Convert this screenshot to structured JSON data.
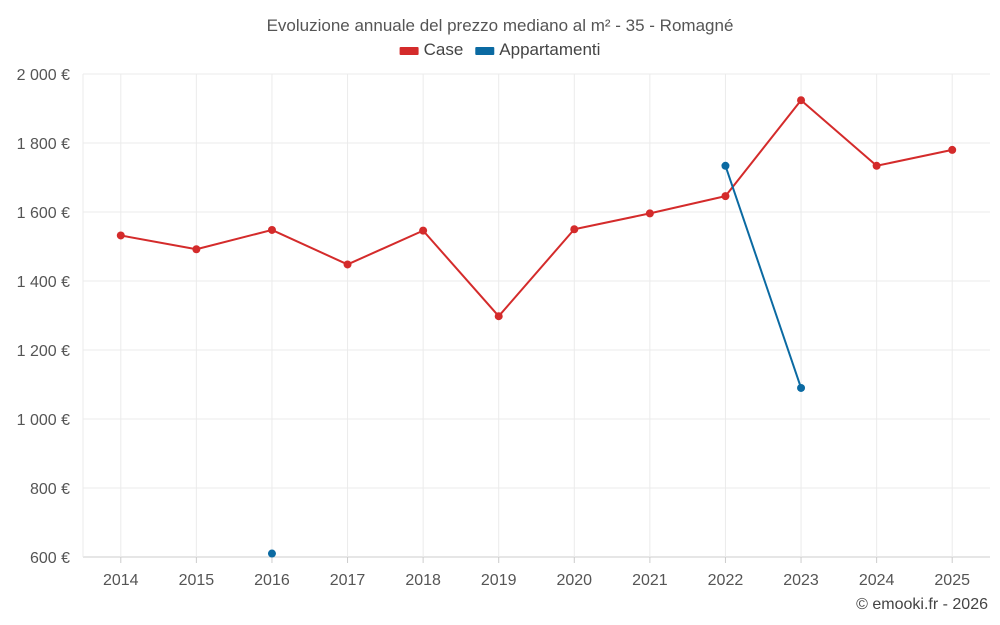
{
  "chart_data": {
    "type": "line",
    "title": "Evoluzione annuale del prezzo mediano al m² - 35 - Romagné",
    "categories": [
      "2014",
      "2015",
      "2016",
      "2017",
      "2018",
      "2019",
      "2020",
      "2021",
      "2022",
      "2023",
      "2024",
      "2025"
    ],
    "y_ticks": [
      "600 €",
      "800 €",
      "1 000 €",
      "1 200 €",
      "1 400 €",
      "1 600 €",
      "1 800 €",
      "2 000 €"
    ],
    "ylim": [
      600,
      2000
    ],
    "grid": true,
    "legend_position": "top-center",
    "series": [
      {
        "name": "Case",
        "color": "#d42b2b",
        "values": [
          1532,
          1492,
          1548,
          1448,
          1546,
          1298,
          1550,
          1596,
          1646,
          1924,
          1734,
          1780
        ]
      },
      {
        "name": "Appartamenti",
        "color": "#0b6aa2",
        "values": [
          null,
          null,
          610,
          null,
          null,
          null,
          null,
          null,
          1734,
          1090,
          null,
          null
        ]
      }
    ]
  },
  "credit": "© emooki.fr - 2026"
}
